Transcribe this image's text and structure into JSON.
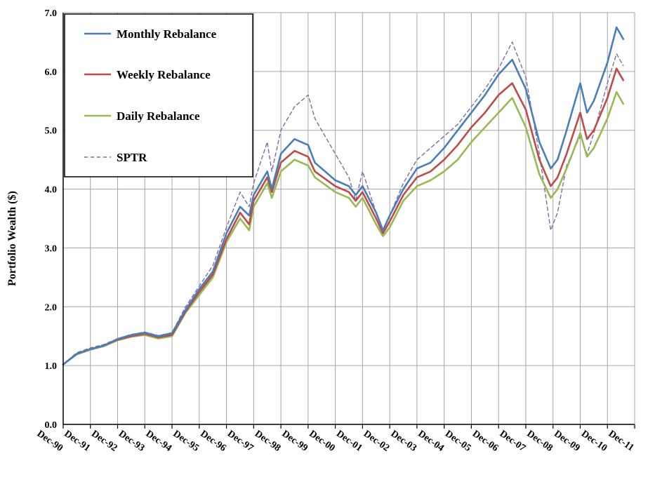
{
  "chart_data": {
    "type": "line",
    "title": "",
    "xlabel": "",
    "ylabel": "Portfolio Wealth ($)",
    "x_tick_labels": [
      "Dec-90",
      "Dec-91",
      "Dec-92",
      "Dec-93",
      "Dec-94",
      "Dec-95",
      "Dec-96",
      "Dec-97",
      "Dec-98",
      "Dec-99",
      "Dec-00",
      "Dec-01",
      "Dec-02",
      "Dec-03",
      "Dec-04",
      "Dec-05",
      "Dec-06",
      "Dec-07",
      "Dec-08",
      "Dec-09",
      "Dec-10",
      "Dec-11"
    ],
    "y_tick_labels": [
      "0.0",
      "1.0",
      "2.0",
      "3.0",
      "4.0",
      "5.0",
      "6.0",
      "7.0"
    ],
    "ylim": [
      0,
      7
    ],
    "xlim": [
      "Dec-90",
      "Dec-11"
    ],
    "grid": true,
    "legend_position": "top-left",
    "colors": {
      "monthly": "#4a7ebb",
      "weekly": "#be4b48",
      "daily": "#98b954",
      "sptr": "#7f6aa8"
    },
    "series": [
      {
        "name": "Monthly Rebalance",
        "style": "solid",
        "x": [
          "Dec-90",
          "Jun-91",
          "Dec-91",
          "Jun-92",
          "Dec-92",
          "Jun-93",
          "Dec-93",
          "Jun-94",
          "Dec-94",
          "Jun-95",
          "Dec-95",
          "Jun-96",
          "Dec-96",
          "Jun-97",
          "Oct-97",
          "Dec-97",
          "Jun-98",
          "Aug-98",
          "Dec-98",
          "Jun-99",
          "Dec-99",
          "Mar-00",
          "Dec-00",
          "Jun-01",
          "Sep-01",
          "Dec-01",
          "Jun-02",
          "Sep-02",
          "Dec-02",
          "Jun-03",
          "Dec-03",
          "Jun-04",
          "Dec-04",
          "Jun-05",
          "Dec-05",
          "Jun-06",
          "Dec-06",
          "Jun-07",
          "Dec-07",
          "Jun-08",
          "Nov-08",
          "Feb-09",
          "Jun-09",
          "Dec-09",
          "Mar-10",
          "Jun-10",
          "Dec-10",
          "Apr-11",
          "Jul-11"
        ],
        "values": [
          1.02,
          1.2,
          1.28,
          1.34,
          1.45,
          1.52,
          1.56,
          1.5,
          1.55,
          1.95,
          2.3,
          2.6,
          3.25,
          3.7,
          3.55,
          3.9,
          4.3,
          4.0,
          4.6,
          4.85,
          4.75,
          4.45,
          4.15,
          4.05,
          3.9,
          4.05,
          3.6,
          3.3,
          3.55,
          4.0,
          4.35,
          4.45,
          4.7,
          5.0,
          5.3,
          5.6,
          5.95,
          6.2,
          5.7,
          4.8,
          4.35,
          4.5,
          5.0,
          5.8,
          5.3,
          5.5,
          6.15,
          6.75,
          6.55
        ]
      },
      {
        "name": "Weekly Rebalance",
        "style": "solid",
        "x": [
          "Dec-90",
          "Jun-91",
          "Dec-91",
          "Jun-92",
          "Dec-92",
          "Jun-93",
          "Dec-93",
          "Jun-94",
          "Dec-94",
          "Jun-95",
          "Dec-95",
          "Jun-96",
          "Dec-96",
          "Jun-97",
          "Oct-97",
          "Dec-97",
          "Jun-98",
          "Aug-98",
          "Dec-98",
          "Jun-99",
          "Dec-99",
          "Mar-00",
          "Dec-00",
          "Jun-01",
          "Sep-01",
          "Dec-01",
          "Jun-02",
          "Sep-02",
          "Dec-02",
          "Jun-03",
          "Dec-03",
          "Jun-04",
          "Dec-04",
          "Jun-05",
          "Dec-05",
          "Jun-06",
          "Dec-06",
          "Jun-07",
          "Dec-07",
          "Jun-08",
          "Nov-08",
          "Feb-09",
          "Jun-09",
          "Dec-09",
          "Mar-10",
          "Jun-10",
          "Dec-10",
          "Apr-11",
          "Jul-11"
        ],
        "values": [
          1.02,
          1.2,
          1.28,
          1.34,
          1.44,
          1.5,
          1.54,
          1.48,
          1.52,
          1.92,
          2.25,
          2.55,
          3.15,
          3.6,
          3.4,
          3.8,
          4.2,
          3.95,
          4.45,
          4.65,
          4.55,
          4.3,
          4.05,
          3.95,
          3.8,
          3.95,
          3.5,
          3.25,
          3.45,
          3.9,
          4.2,
          4.3,
          4.5,
          4.75,
          5.05,
          5.3,
          5.6,
          5.8,
          5.35,
          4.5,
          4.05,
          4.2,
          4.6,
          5.3,
          4.85,
          5.0,
          5.55,
          6.05,
          5.85
        ]
      },
      {
        "name": "Daily Rebalance",
        "style": "solid",
        "x": [
          "Dec-90",
          "Jun-91",
          "Dec-91",
          "Jun-92",
          "Dec-92",
          "Jun-93",
          "Dec-93",
          "Jun-94",
          "Dec-94",
          "Jun-95",
          "Dec-95",
          "Jun-96",
          "Dec-96",
          "Jun-97",
          "Oct-97",
          "Dec-97",
          "Jun-98",
          "Aug-98",
          "Dec-98",
          "Jun-99",
          "Dec-99",
          "Mar-00",
          "Dec-00",
          "Jun-01",
          "Sep-01",
          "Dec-01",
          "Jun-02",
          "Sep-02",
          "Dec-02",
          "Jun-03",
          "Dec-03",
          "Jun-04",
          "Dec-04",
          "Jun-05",
          "Dec-05",
          "Jun-06",
          "Dec-06",
          "Jun-07",
          "Dec-07",
          "Jun-08",
          "Nov-08",
          "Feb-09",
          "Jun-09",
          "Dec-09",
          "Mar-10",
          "Jun-10",
          "Dec-10",
          "Apr-11",
          "Jul-11"
        ],
        "values": [
          1.02,
          1.19,
          1.27,
          1.33,
          1.43,
          1.49,
          1.52,
          1.46,
          1.5,
          1.9,
          2.2,
          2.5,
          3.1,
          3.5,
          3.3,
          3.7,
          4.1,
          3.85,
          4.3,
          4.5,
          4.4,
          4.2,
          3.95,
          3.85,
          3.7,
          3.85,
          3.4,
          3.2,
          3.35,
          3.8,
          4.05,
          4.15,
          4.3,
          4.5,
          4.8,
          5.05,
          5.3,
          5.55,
          5.05,
          4.25,
          3.85,
          4.0,
          4.35,
          4.95,
          4.55,
          4.7,
          5.2,
          5.65,
          5.45
        ]
      },
      {
        "name": "SPTR",
        "style": "dashed",
        "x": [
          "Dec-90",
          "Jun-91",
          "Dec-91",
          "Jun-92",
          "Dec-92",
          "Jun-93",
          "Dec-93",
          "Jun-94",
          "Dec-94",
          "Jun-95",
          "Dec-95",
          "Jun-96",
          "Dec-96",
          "Jun-97",
          "Oct-97",
          "Dec-97",
          "Jun-98",
          "Aug-98",
          "Dec-98",
          "Jun-99",
          "Dec-99",
          "Mar-00",
          "Dec-00",
          "Jun-01",
          "Sep-01",
          "Dec-01",
          "Jun-02",
          "Sep-02",
          "Dec-02",
          "Jun-03",
          "Dec-03",
          "Jun-04",
          "Dec-04",
          "Jun-05",
          "Dec-05",
          "Jun-06",
          "Dec-06",
          "Jun-07",
          "Dec-07",
          "Jun-08",
          "Nov-08",
          "Feb-09",
          "Jun-09",
          "Dec-09",
          "Mar-10",
          "Jun-10",
          "Dec-10",
          "Apr-11",
          "Jul-11"
        ],
        "values": [
          1.02,
          1.22,
          1.3,
          1.36,
          1.46,
          1.53,
          1.57,
          1.51,
          1.56,
          2.0,
          2.35,
          2.7,
          3.35,
          3.95,
          3.7,
          4.1,
          4.8,
          4.3,
          5.0,
          5.4,
          5.6,
          5.2,
          4.6,
          4.2,
          3.8,
          4.3,
          3.6,
          3.3,
          3.55,
          4.1,
          4.5,
          4.7,
          4.9,
          5.1,
          5.4,
          5.7,
          6.05,
          6.5,
          5.9,
          4.6,
          3.3,
          3.6,
          4.4,
          4.9,
          4.6,
          4.95,
          5.8,
          6.3,
          6.1
        ]
      }
    ],
    "legend": [
      {
        "key": "monthly",
        "label": "Monthly Rebalance",
        "style": "solid"
      },
      {
        "key": "weekly",
        "label": "Weekly Rebalance",
        "style": "solid"
      },
      {
        "key": "daily",
        "label": "Daily Rebalance",
        "style": "solid"
      },
      {
        "key": "sptr",
        "label": "SPTR",
        "style": "dashed"
      }
    ]
  }
}
